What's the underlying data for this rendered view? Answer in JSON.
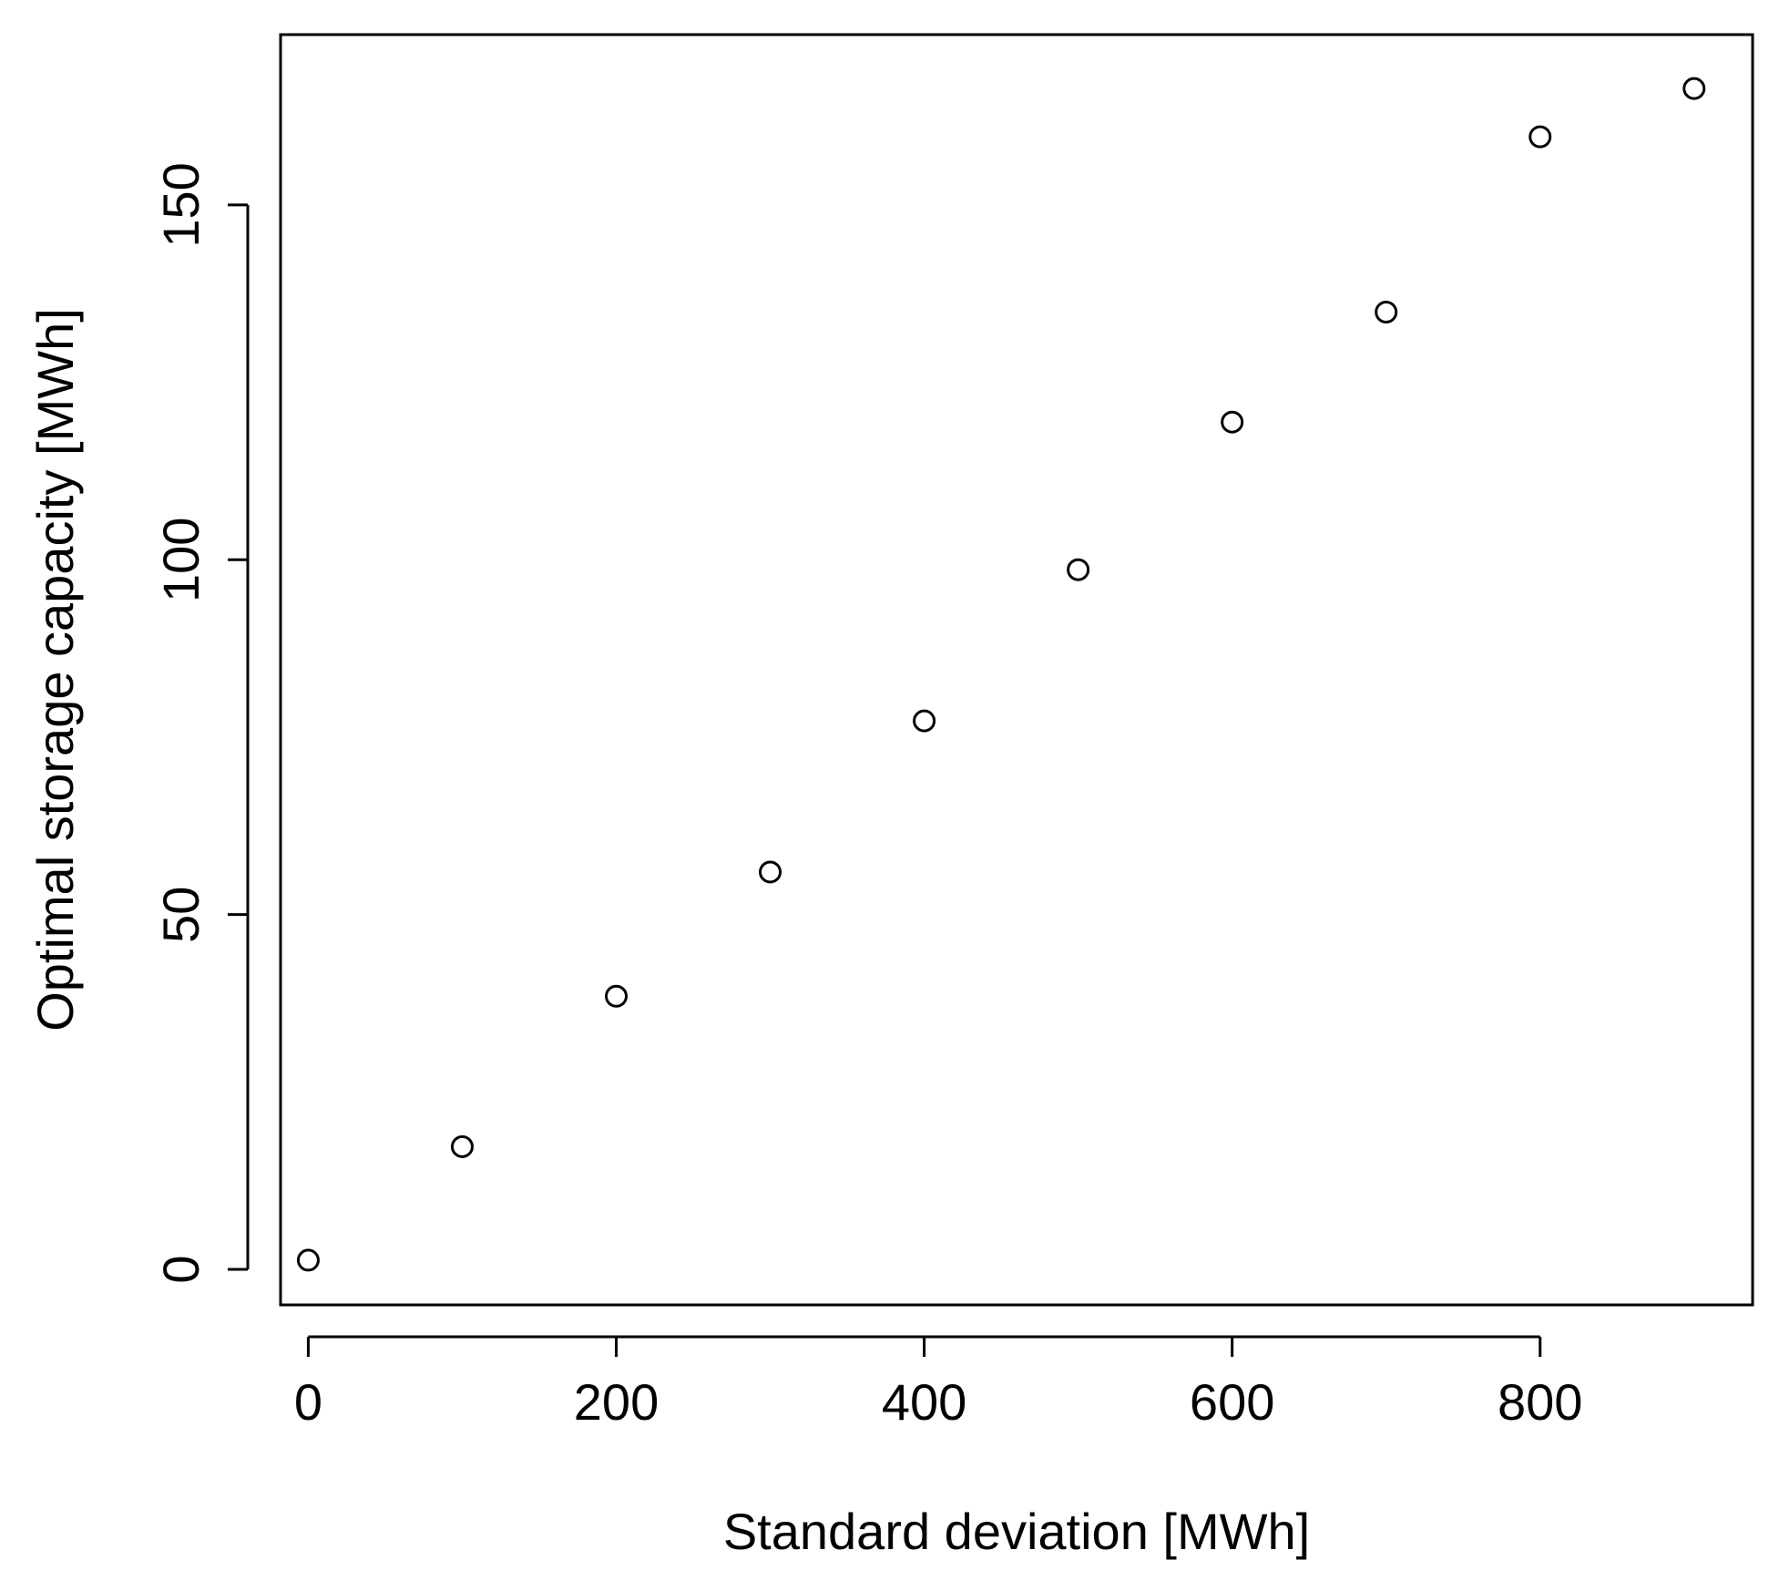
{
  "chart_data": {
    "type": "scatter",
    "title": "",
    "xlabel": "Standard deviation [MWh]",
    "ylabel": "Optimal storage capacity [MWh]",
    "xlim": [
      -18,
      938
    ],
    "ylim": [
      -5,
      174
    ],
    "x_ticks": [
      0,
      200,
      400,
      600,
      800
    ],
    "x_tick_labels": [
      "0",
      "200",
      "400",
      "600",
      "800"
    ],
    "y_ticks": [
      0,
      50,
      100,
      150
    ],
    "y_tick_labels": [
      "0",
      "50",
      "100",
      "150"
    ],
    "grid": false,
    "legend": "none",
    "marker": "open-circle",
    "series": [
      {
        "x": [
          0,
          100,
          200,
          300,
          400,
          500,
          600,
          700,
          800,
          900
        ],
        "y": [
          1.3,
          17.3,
          38.5,
          56,
          77.3,
          98.6,
          119.4,
          134.9,
          159.6,
          166.4
        ]
      }
    ]
  }
}
